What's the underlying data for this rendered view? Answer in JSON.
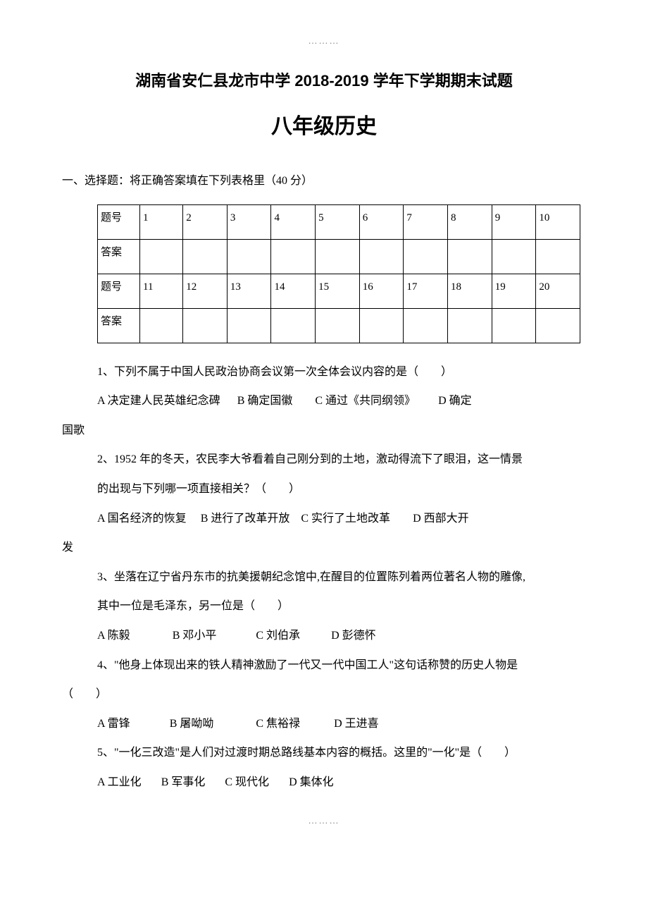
{
  "decor": {
    "dots": "………"
  },
  "title1": "湖南省安仁县龙市中学 2018-2019 学年下学期期末试题",
  "title2": "八年级历史",
  "sectionHeading": "一、选择题：将正确答案填在下列表格里（40 分）",
  "table": {
    "rowLabel1": "题号",
    "rowLabel2": "答案",
    "row1": [
      "1",
      "2",
      "3",
      "4",
      "5",
      "6",
      "7",
      "8",
      "9",
      "10"
    ],
    "row2": [
      "",
      "",
      "",
      "",
      "",
      "",
      "",
      "",
      "",
      ""
    ],
    "row3": [
      "11",
      "12",
      "13",
      "14",
      "15",
      "16",
      "17",
      "18",
      "19",
      "20"
    ],
    "row4": [
      "",
      "",
      "",
      "",
      "",
      "",
      "",
      "",
      "",
      ""
    ]
  },
  "q1": {
    "text": "1、下列不属于中国人民政治协商会议第一次全体会议内容的是（　　）",
    "optA": "A 决定建人民英雄纪念碑",
    "optB": "B 确定国徽",
    "optC": "C 通过《共同纲领》",
    "optD": "D 确定",
    "cont": "国歌"
  },
  "q2": {
    "line1": "2、1952 年的冬天，农民李大爷看着自己刚分到的土地，激动得流下了眼泪，这一情景",
    "line2": "的出现与下列哪一项直接相关？（　　）",
    "optA": "A 国名经济的恢复",
    "optB": "B 进行了改革开放",
    "optC": "C 实行了土地改革",
    "optD": "D 西部大开",
    "cont": "发"
  },
  "q3": {
    "line1": "3、坐落在辽宁省丹东市的抗美援朝纪念馆中,在醒目的位置陈列着两位著名人物的雕像,",
    "line2": "其中一位是毛泽东，另一位是（　　）",
    "optA": "A 陈毅",
    "optB": "B 邓小平",
    "optC": "C 刘伯承",
    "optD": "D 彭德怀"
  },
  "q4": {
    "line1": "4、\"他身上体现出来的铁人精神激励了一代又一代中国工人\"这句话称赞的历史人物是",
    "cont": "（　　）",
    "optA": "A 雷锋",
    "optB": "B 屠呦呦",
    "optC": "C 焦裕禄",
    "optD": "D 王进喜"
  },
  "q5": {
    "text": "5、\"一化三改造\"是人们对过渡时期总路线基本内容的概括。这里的\"一化\"是（　　）",
    "optA": "A 工业化",
    "optB": "B 军事化",
    "optC": "C 现代化",
    "optD": "D 集体化"
  }
}
